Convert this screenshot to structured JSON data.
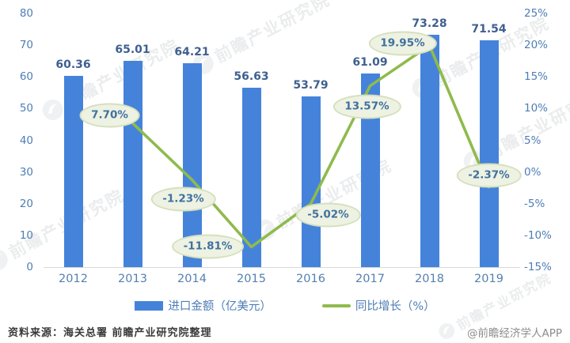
{
  "chart_data": {
    "type": "bar+line",
    "title": "",
    "categories": [
      "2012",
      "2013",
      "2014",
      "2015",
      "2016",
      "2017",
      "2018",
      "2019"
    ],
    "series": [
      {
        "name": "进口金额（亿美元）",
        "type": "bar",
        "axis": "left",
        "color": "#4583DB",
        "values": [
          60.36,
          65.01,
          64.21,
          56.63,
          53.79,
          61.09,
          73.28,
          71.54
        ],
        "labels": [
          "60.36",
          "65.01",
          "64.21",
          "56.63",
          "53.79",
          "61.09",
          "73.28",
          "71.54"
        ]
      },
      {
        "name": "同比增长（%）",
        "type": "line",
        "axis": "right",
        "color": "#8FBA4D",
        "values": [
          null,
          7.7,
          -1.23,
          -11.81,
          -5.02,
          13.57,
          19.95,
          -2.37
        ],
        "labels": [
          "",
          "7.70%",
          "-1.23%",
          "-11.81%",
          "-5.02%",
          "13.57%",
          "19.95%",
          "-2.37%"
        ]
      }
    ],
    "left_axis": {
      "min": 0,
      "max": 80,
      "step": 10,
      "ticks": [
        "80",
        "70",
        "60",
        "50",
        "40",
        "30",
        "20",
        "10",
        "0"
      ]
    },
    "right_axis": {
      "min": -15,
      "max": 25,
      "step": 5,
      "ticks": [
        "25%",
        "20%",
        "15%",
        "10%",
        "5%",
        "0%",
        "-5%",
        "-10%",
        "-15%"
      ]
    },
    "grid": false,
    "legend_position": "bottom",
    "point_label_offsets": [
      null,
      [
        -29,
        -10
      ],
      [
        -11,
        25
      ],
      [
        -55,
        0
      ],
      [
        22,
        14
      ],
      [
        -4,
        26
      ],
      [
        -34,
        -3
      ],
      [
        0,
        -15
      ]
    ]
  },
  "legend": {
    "items": [
      {
        "label": "进口金额（亿美元）",
        "swatch": "bar"
      },
      {
        "label": "同比增长（%）",
        "swatch": "line"
      }
    ]
  },
  "footer": {
    "source": "资料来源：海关总署 前瞻产业研究院整理",
    "credit": "@前瞻经济学人APP"
  },
  "watermark": {
    "text": "前瞻产业研究院"
  },
  "colors": {
    "bar": "#4583DB",
    "line": "#8FBA4D",
    "bubble_fill": "#EEF2E2",
    "bubble_border": "#D5E0BE",
    "axis_text": "#4E7DB5",
    "bar_label_text": "#3F608F",
    "bubble_text": "#40719F",
    "axis_line": "#D9D9D9"
  }
}
